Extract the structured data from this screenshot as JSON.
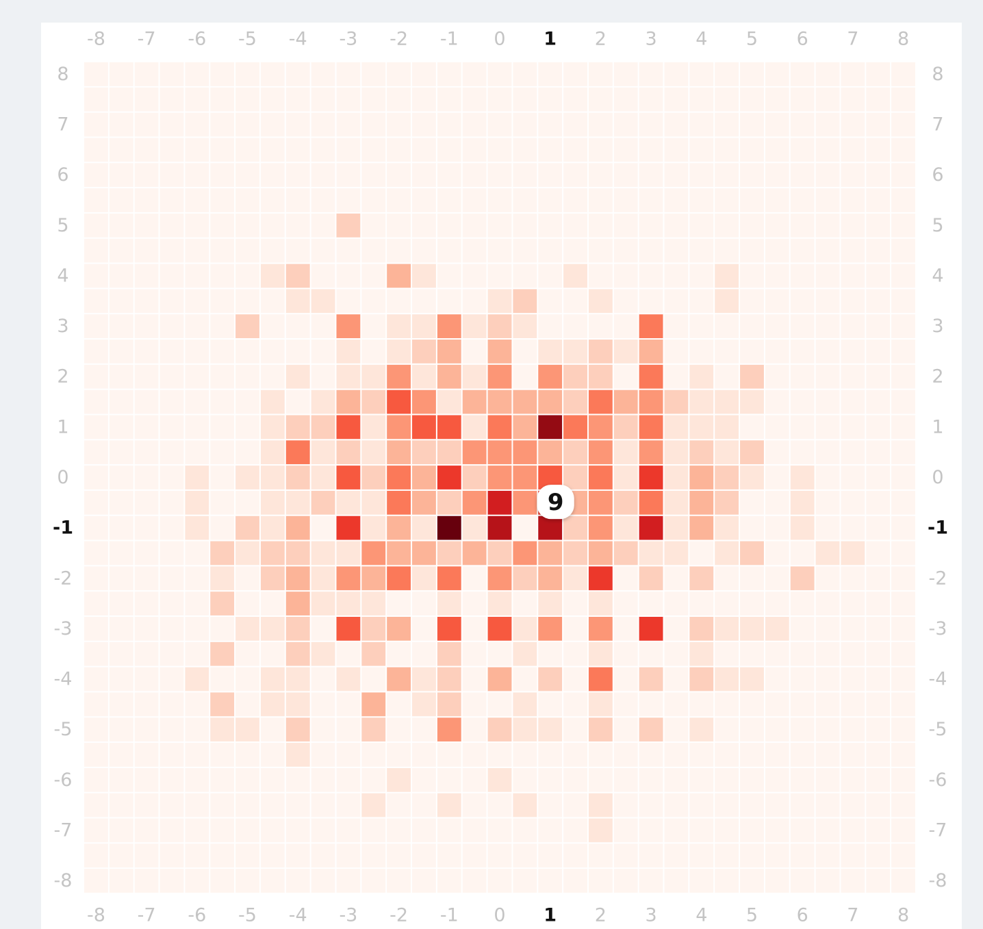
{
  "chart_data": {
    "type": "heatmap",
    "x": [
      -8,
      -7.5,
      -7,
      -6.5,
      -6,
      -5.5,
      -5,
      -4.5,
      -4,
      -3.5,
      -3,
      -2.5,
      -2,
      -1.5,
      -1,
      -0.5,
      0,
      0.5,
      1,
      1.5,
      2,
      2.5,
      3,
      3.5,
      4,
      4.5,
      5,
      5.5,
      6,
      6.5,
      7,
      7.5,
      8
    ],
    "y": [
      -8,
      -7.5,
      -7,
      -6.5,
      -6,
      -5.5,
      -5,
      -4.5,
      -4,
      -3.5,
      -3,
      -2.5,
      -2,
      -1.5,
      -1,
      -0.5,
      0,
      0.5,
      1,
      1.5,
      2,
      2.5,
      3,
      3.5,
      4,
      4.5,
      5,
      5.5,
      6,
      6.5,
      7,
      7.5,
      8
    ],
    "z": [
      [
        0,
        0,
        0,
        0,
        0,
        0,
        0,
        0,
        0,
        0,
        0,
        0,
        0,
        0,
        0,
        0,
        0,
        0,
        0,
        0,
        0,
        0,
        0,
        0,
        0,
        0,
        0,
        0,
        0,
        0,
        0,
        0,
        0
      ],
      [
        0,
        0,
        0,
        0,
        0,
        0,
        0,
        0,
        0,
        0,
        0,
        0,
        0,
        0,
        0,
        0,
        0,
        0,
        0,
        0,
        0,
        0,
        0,
        0,
        0,
        0,
        0,
        0,
        0,
        0,
        0,
        0,
        0
      ],
      [
        0,
        0,
        0,
        0,
        0,
        0,
        0,
        0,
        0,
        0,
        0,
        0,
        0,
        0,
        0,
        0,
        0,
        0,
        0,
        0,
        1,
        0,
        0,
        0,
        0,
        0,
        0,
        0,
        0,
        0,
        0,
        0,
        0
      ],
      [
        0,
        0,
        0,
        0,
        0,
        0,
        0,
        0,
        0,
        0,
        0,
        1,
        0,
        0,
        1,
        0,
        0,
        1,
        0,
        0,
        1,
        0,
        0,
        0,
        0,
        0,
        0,
        0,
        0,
        0,
        0,
        0,
        0
      ],
      [
        0,
        0,
        0,
        0,
        0,
        0,
        0,
        0,
        0,
        0,
        0,
        0,
        1,
        0,
        0,
        0,
        1,
        0,
        0,
        0,
        0,
        0,
        0,
        0,
        0,
        0,
        0,
        0,
        0,
        0,
        0,
        0,
        0
      ],
      [
        0,
        0,
        0,
        0,
        0,
        0,
        0,
        0,
        1,
        0,
        0,
        0,
        0,
        0,
        0,
        0,
        0,
        0,
        0,
        0,
        0,
        0,
        0,
        0,
        0,
        0,
        0,
        0,
        0,
        0,
        0,
        0,
        0
      ],
      [
        0,
        0,
        0,
        0,
        0,
        1,
        1,
        0,
        2,
        0,
        0,
        2,
        0,
        0,
        4,
        0,
        2,
        1,
        1,
        0,
        2,
        0,
        2,
        0,
        1,
        0,
        0,
        0,
        0,
        0,
        0,
        0,
        0
      ],
      [
        0,
        0,
        0,
        0,
        0,
        2,
        0,
        1,
        1,
        0,
        0,
        3,
        0,
        1,
        2,
        0,
        0,
        1,
        0,
        0,
        1,
        0,
        0,
        0,
        0,
        0,
        0,
        0,
        0,
        0,
        0,
        0,
        0
      ],
      [
        0,
        0,
        0,
        0,
        1,
        0,
        0,
        1,
        1,
        0,
        1,
        0,
        3,
        1,
        2,
        0,
        3,
        0,
        2,
        0,
        5,
        0,
        2,
        0,
        2,
        1,
        1,
        0,
        0,
        0,
        0,
        0,
        0
      ],
      [
        0,
        0,
        0,
        0,
        0,
        2,
        0,
        0,
        2,
        1,
        0,
        2,
        0,
        0,
        2,
        0,
        0,
        1,
        0,
        0,
        1,
        0,
        0,
        0,
        1,
        0,
        0,
        0,
        0,
        0,
        0,
        0,
        0
      ],
      [
        0,
        0,
        0,
        0,
        0,
        0,
        1,
        1,
        2,
        0,
        6,
        2,
        3,
        0,
        6,
        0,
        6,
        1,
        4,
        0,
        4,
        0,
        7,
        0,
        2,
        1,
        1,
        1,
        0,
        0,
        0,
        0,
        0
      ],
      [
        0,
        0,
        0,
        0,
        0,
        2,
        0,
        0,
        3,
        1,
        1,
        1,
        0,
        0,
        1,
        0,
        1,
        0,
        1,
        0,
        1,
        0,
        0,
        0,
        0,
        0,
        0,
        0,
        0,
        0,
        0,
        0,
        0
      ],
      [
        0,
        0,
        0,
        0,
        0,
        1,
        0,
        2,
        3,
        1,
        4,
        3,
        5,
        1,
        5,
        0,
        4,
        2,
        3,
        1,
        7,
        0,
        2,
        0,
        2,
        0,
        0,
        0,
        2,
        0,
        0,
        0,
        0
      ],
      [
        0,
        0,
        0,
        0,
        0,
        2,
        1,
        2,
        2,
        1,
        1,
        4,
        3,
        3,
        2,
        3,
        2,
        4,
        3,
        2,
        3,
        2,
        1,
        1,
        0,
        1,
        2,
        0,
        0,
        1,
        1,
        0,
        0
      ],
      [
        0,
        0,
        0,
        0,
        1,
        0,
        2,
        1,
        3,
        0,
        7,
        1,
        3,
        1,
        11,
        1,
        9,
        0,
        9,
        2,
        4,
        1,
        8,
        1,
        3,
        1,
        0,
        0,
        1,
        0,
        0,
        0,
        0
      ],
      [
        0,
        0,
        0,
        0,
        1,
        0,
        0,
        1,
        1,
        2,
        1,
        1,
        5,
        3,
        2,
        4,
        8,
        4,
        7,
        3,
        4,
        2,
        5,
        1,
        3,
        2,
        0,
        0,
        1,
        0,
        0,
        0,
        0
      ],
      [
        0,
        0,
        0,
        0,
        1,
        0,
        1,
        1,
        2,
        1,
        6,
        2,
        5,
        3,
        7,
        2,
        4,
        4,
        6,
        2,
        5,
        1,
        7,
        1,
        3,
        2,
        1,
        0,
        1,
        0,
        0,
        0,
        0
      ],
      [
        0,
        0,
        0,
        0,
        0,
        0,
        0,
        1,
        5,
        1,
        2,
        1,
        3,
        2,
        2,
        4,
        4,
        4,
        3,
        2,
        4,
        1,
        4,
        1,
        2,
        1,
        2,
        0,
        0,
        0,
        0,
        0,
        0
      ],
      [
        0,
        0,
        0,
        0,
        0,
        0,
        0,
        1,
        2,
        2,
        6,
        1,
        4,
        6,
        6,
        1,
        5,
        3,
        10,
        5,
        4,
        2,
        5,
        1,
        1,
        1,
        0,
        0,
        0,
        0,
        0,
        0,
        0
      ],
      [
        0,
        0,
        0,
        0,
        0,
        0,
        0,
        1,
        0,
        1,
        3,
        2,
        6,
        4,
        1,
        3,
        3,
        3,
        3,
        2,
        5,
        3,
        4,
        2,
        1,
        1,
        1,
        0,
        0,
        0,
        0,
        0,
        0
      ],
      [
        0,
        0,
        0,
        0,
        0,
        0,
        0,
        0,
        1,
        0,
        1,
        1,
        4,
        1,
        3,
        1,
        4,
        0,
        4,
        2,
        2,
        0,
        5,
        0,
        1,
        0,
        2,
        0,
        0,
        0,
        0,
        0,
        0
      ],
      [
        0,
        0,
        0,
        0,
        0,
        0,
        0,
        0,
        0,
        0,
        1,
        0,
        1,
        2,
        3,
        0,
        3,
        0,
        1,
        1,
        2,
        1,
        3,
        0,
        0,
        0,
        0,
        0,
        0,
        0,
        0,
        0,
        0
      ],
      [
        0,
        0,
        0,
        0,
        0,
        0,
        2,
        0,
        0,
        0,
        4,
        0,
        1,
        1,
        4,
        1,
        2,
        1,
        0,
        0,
        0,
        0,
        5,
        0,
        0,
        0,
        0,
        0,
        0,
        0,
        0,
        0,
        0
      ],
      [
        0,
        0,
        0,
        0,
        0,
        0,
        0,
        0,
        1,
        1,
        0,
        0,
        0,
        0,
        0,
        0,
        1,
        2,
        0,
        0,
        1,
        0,
        0,
        0,
        0,
        1,
        0,
        0,
        0,
        0,
        0,
        0,
        0
      ],
      [
        0,
        0,
        0,
        0,
        0,
        0,
        0,
        1,
        2,
        0,
        0,
        0,
        3,
        1,
        0,
        0,
        0,
        0,
        0,
        1,
        0,
        0,
        0,
        0,
        0,
        1,
        0,
        0,
        0,
        0,
        0,
        0,
        0
      ],
      [
        0,
        0,
        0,
        0,
        0,
        0,
        0,
        0,
        0,
        0,
        0,
        0,
        0,
        0,
        0,
        0,
        0,
        0,
        0,
        0,
        0,
        0,
        0,
        0,
        0,
        0,
        0,
        0,
        0,
        0,
        0,
        0,
        0
      ],
      [
        0,
        0,
        0,
        0,
        0,
        0,
        0,
        0,
        0,
        0,
        2,
        0,
        0,
        0,
        0,
        0,
        0,
        0,
        0,
        0,
        0,
        0,
        0,
        0,
        0,
        0,
        0,
        0,
        0,
        0,
        0,
        0,
        0
      ],
      [
        0,
        0,
        0,
        0,
        0,
        0,
        0,
        0,
        0,
        0,
        0,
        0,
        0,
        0,
        0,
        0,
        0,
        0,
        0,
        0,
        0,
        0,
        0,
        0,
        0,
        0,
        0,
        0,
        0,
        0,
        0,
        0,
        0
      ],
      [
        0,
        0,
        0,
        0,
        0,
        0,
        0,
        0,
        0,
        0,
        0,
        0,
        0,
        0,
        0,
        0,
        0,
        0,
        0,
        0,
        0,
        0,
        0,
        0,
        0,
        0,
        0,
        0,
        0,
        0,
        0,
        0,
        0
      ],
      [
        0,
        0,
        0,
        0,
        0,
        0,
        0,
        0,
        0,
        0,
        0,
        0,
        0,
        0,
        0,
        0,
        0,
        0,
        0,
        0,
        0,
        0,
        0,
        0,
        0,
        0,
        0,
        0,
        0,
        0,
        0,
        0,
        0
      ],
      [
        0,
        0,
        0,
        0,
        0,
        0,
        0,
        0,
        0,
        0,
        0,
        0,
        0,
        0,
        0,
        0,
        0,
        0,
        0,
        0,
        0,
        0,
        0,
        0,
        0,
        0,
        0,
        0,
        0,
        0,
        0,
        0,
        0
      ],
      [
        0,
        0,
        0,
        0,
        0,
        0,
        0,
        0,
        0,
        0,
        0,
        0,
        0,
        0,
        0,
        0,
        0,
        0,
        0,
        0,
        0,
        0,
        0,
        0,
        0,
        0,
        0,
        0,
        0,
        0,
        0,
        0,
        0
      ],
      [
        0,
        0,
        0,
        0,
        0,
        0,
        0,
        0,
        0,
        0,
        0,
        0,
        0,
        0,
        0,
        0,
        0,
        0,
        0,
        0,
        0,
        0,
        0,
        0,
        0,
        0,
        0,
        0,
        0,
        0,
        0,
        0,
        0
      ]
    ],
    "xlim": [
      -8.25,
      8.25
    ],
    "ylim": [
      -8.25,
      8.25
    ],
    "xticks": [
      -8,
      -7,
      -6,
      -5,
      -4,
      -3,
      -2,
      -1,
      0,
      1,
      2,
      3,
      4,
      5,
      6,
      7,
      8
    ],
    "yticks": [
      -8,
      -7,
      -6,
      -5,
      -4,
      -3,
      -2,
      -1,
      0,
      1,
      2,
      3,
      4,
      5,
      6,
      7,
      8
    ],
    "colorscale": "Reds",
    "zlim": [
      0,
      11
    ],
    "highlight": {
      "x": 1,
      "y": -1
    }
  }
}
